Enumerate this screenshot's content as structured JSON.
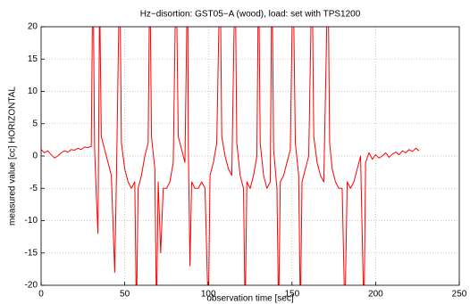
{
  "chart_data": {
    "type": "line",
    "title": "Hz−disortion: GST05−A (wood), load: set with TPS1200",
    "xlabel": "observation time [sec]",
    "ylabel": "measured value [cc] HORIZONTAL",
    "xlim": [
      0,
      250
    ],
    "xticks": [
      0,
      50,
      100,
      150,
      200,
      250
    ],
    "ylim": [
      -20,
      20
    ],
    "yticks": [
      -20,
      -15,
      -10,
      -5,
      0,
      5,
      10,
      15,
      20
    ],
    "grid": true,
    "series": [
      {
        "color": "#ff0000",
        "x": [
          0,
          2,
          4,
          6,
          8,
          10,
          12,
          14,
          16,
          18,
          20,
          22,
          24,
          26,
          28,
          30,
          31,
          32,
          33,
          34,
          35,
          36,
          38,
          40,
          42,
          44,
          45,
          47,
          48,
          50,
          52,
          54,
          56,
          57,
          58,
          60,
          62,
          64,
          65,
          66,
          68,
          69,
          70,
          71.5,
          73,
          75,
          77,
          79,
          80.7,
          82,
          84,
          86,
          87.6,
          88,
          89,
          90,
          92,
          94,
          96,
          98,
          100,
          101,
          103,
          105,
          107,
          108,
          110,
          112,
          114,
          116,
          117,
          119,
          121,
          122,
          123,
          125,
          127,
          129,
          130,
          131,
          133,
          135,
          137,
          138,
          139,
          141,
          142,
          143,
          145,
          147,
          149,
          150.6,
          152,
          154,
          155,
          156,
          158,
          160,
          162,
          163,
          165,
          167,
          169,
          171.5,
          172.5,
          174,
          176,
          178,
          180,
          181.6,
          183,
          185,
          187,
          189,
          191,
          193,
          194,
          196,
          198,
          200,
          202,
          204,
          206,
          208,
          210,
          212,
          214,
          216,
          218,
          220,
          222,
          224,
          226
        ],
        "values": [
          1,
          0.5,
          0.8,
          0.2,
          -0.3,
          0,
          0.5,
          0.8,
          0.6,
          1.0,
          0.9,
          1.2,
          1.0,
          1.4,
          1.3,
          1.5,
          30,
          1,
          -6,
          -12,
          25,
          3,
          1,
          -1,
          -3,
          -18,
          -4,
          30,
          2,
          -2,
          -4,
          -5,
          -4,
          -25,
          -5,
          -3,
          0,
          2,
          30,
          3,
          -2,
          -25,
          -4,
          -15,
          -5,
          -5,
          -4,
          -1,
          30,
          3,
          1,
          -1,
          30,
          2,
          -17,
          -4,
          -5,
          -5,
          -4,
          -5,
          -25,
          -3,
          -1,
          2,
          30,
          3,
          0,
          -2,
          -3,
          30,
          2,
          -3,
          -5,
          -25,
          -4,
          -5,
          -3,
          0,
          30,
          2,
          -3,
          -5,
          -4,
          30,
          1,
          -5,
          -25,
          -4,
          -3,
          -1,
          1,
          30,
          2,
          -3,
          -25,
          -4,
          -2,
          0,
          30,
          3,
          -1,
          -3,
          -4,
          30,
          2,
          -2,
          -4,
          -5,
          -5,
          -25,
          -4,
          -5,
          -4,
          -2,
          0,
          -25,
          -1,
          0.5,
          -0.5,
          0.2,
          -0.3,
          0,
          0.5,
          -0.2,
          0.3,
          0.6,
          0.2,
          0.8,
          0.5,
          1,
          0.7,
          1.2,
          0.8
        ]
      }
    ]
  }
}
